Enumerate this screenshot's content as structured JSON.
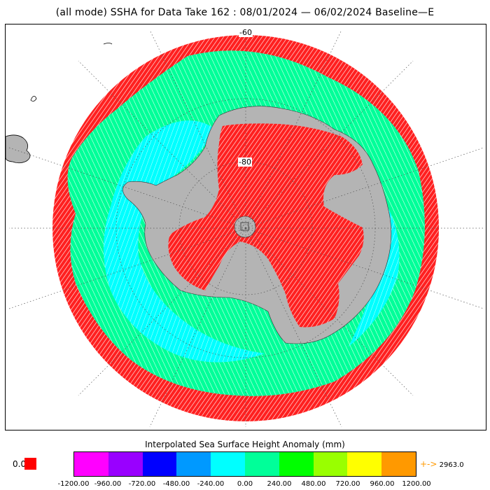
{
  "title": "(all mode) SSHA for Data Take 162 : 08/01/2024 — 06/02/2024 Baseline—E",
  "map": {
    "projection": "south-polar-stereographic",
    "lat_labels": [
      "-60",
      "-80"
    ],
    "colors": {
      "land": "#b4b4b4",
      "ocean_outer": "#ff0000",
      "ocean_mid": "#00ff99",
      "ocean_inner": "#00ffff",
      "ice_interior": "#ff0000",
      "coastline": "#000000",
      "graticule": "#555555"
    }
  },
  "colorbar": {
    "title": "Interpolated Sea Surface Height Anomaly (mm)",
    "colors": [
      "#ff00ff",
      "#9900ff",
      "#0000ff",
      "#0099ff",
      "#00ffff",
      "#00ff99",
      "#00ff00",
      "#99ff00",
      "#ffff00",
      "#ff9900"
    ],
    "ticks": [
      "-1200.00",
      "-960.00",
      "-720.00",
      "-480.00",
      "-240.00",
      "0.00",
      "240.00",
      "480.00",
      "720.00",
      "960.00",
      "1200.00"
    ],
    "min_label": "0.0",
    "min_color": "#ff0000",
    "max_label": "2963.0",
    "max_arrow": "+->"
  }
}
